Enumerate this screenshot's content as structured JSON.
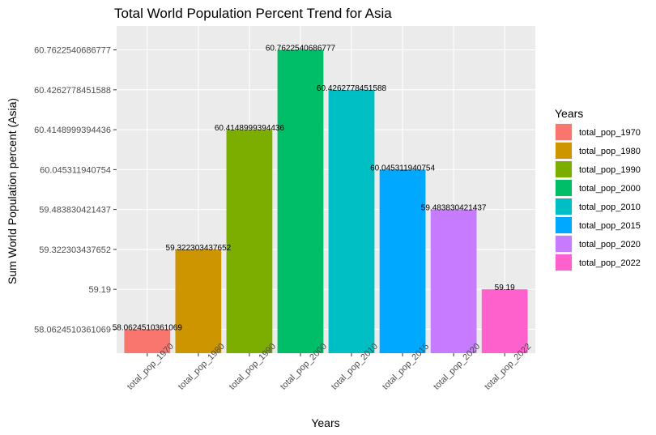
{
  "chart_data": {
    "type": "bar",
    "title": "Total World Population Percent Trend for Asia",
    "xlabel": "Years",
    "ylabel": "Sum World Population percent (Asia)",
    "legend_title": "Years",
    "legend_position": "right",
    "grid": true,
    "axis_scale": "categorical (discrete y values)",
    "categories": [
      "total_pop_1970",
      "total_pop_1980",
      "total_pop_1990",
      "total_pop_2000",
      "total_pop_2010",
      "total_pop_2015",
      "total_pop_2020",
      "total_pop_2022"
    ],
    "values": [
      "58.0624510361069",
      "59.322303437652",
      "60.4148999394436",
      "60.7622540686777",
      "60.4262778451588",
      "60.045311940754",
      "59.483830421437",
      "59.19"
    ],
    "y_ticks": [
      "58.0624510361069",
      "59.19",
      "59.322303437652",
      "59.483830421437",
      "60.045311940754",
      "60.4148999394436",
      "60.4262778451588",
      "60.7622540686777"
    ],
    "colors": [
      "#F8766D",
      "#CD9600",
      "#7CAE00",
      "#00BE67",
      "#00BFC4",
      "#00A9FF",
      "#C77CFF",
      "#FF61CC"
    ]
  }
}
